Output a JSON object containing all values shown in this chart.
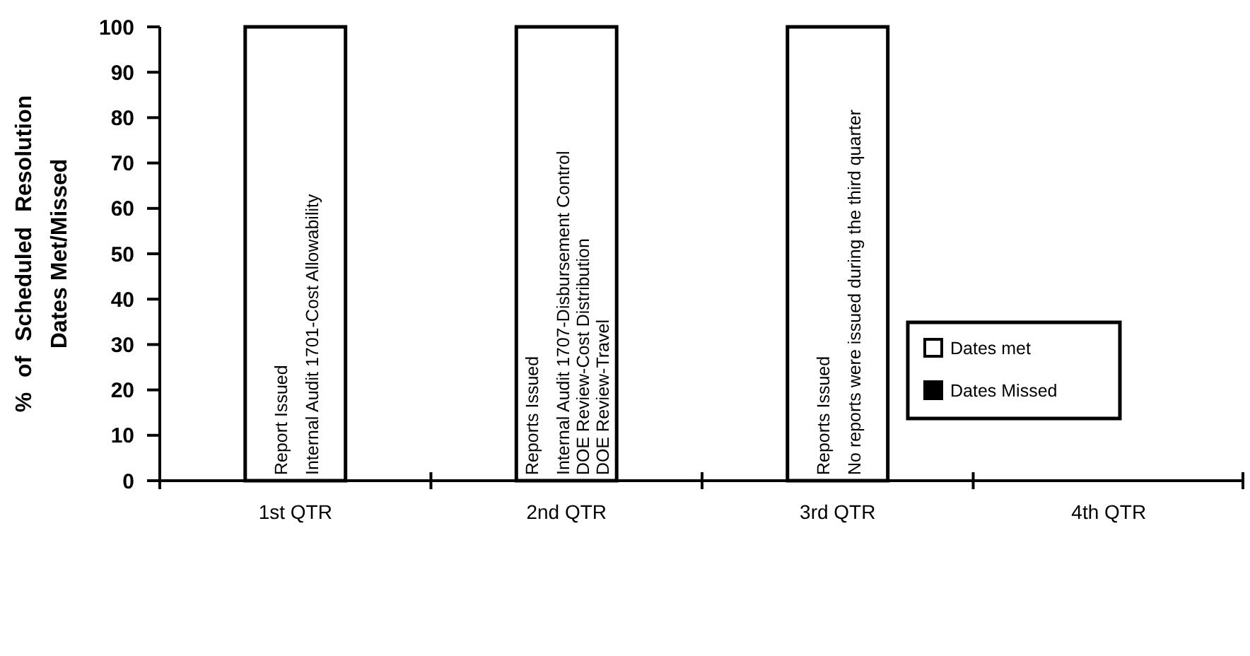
{
  "chart_data": {
    "type": "bar",
    "stacked": true,
    "ylabel": "% of Scheduled Resolution Dates Met/Missed",
    "categories": [
      "1st QTR",
      "2nd QTR",
      "3rd QTR",
      "4th QTR"
    ],
    "series": [
      {
        "name": "Dates met",
        "color": "#ffffff",
        "values": [
          100,
          100,
          100,
          null
        ]
      },
      {
        "name": "Dates Missed",
        "color": "#000000",
        "values": [
          0,
          0,
          0,
          null
        ]
      }
    ],
    "ylim": [
      0,
      100
    ],
    "yticks": [
      0,
      10,
      20,
      30,
      40,
      50,
      60,
      70,
      80,
      90,
      100
    ],
    "grid": false,
    "legend": "right",
    "annotations": [
      "Report Issued\nInternal Audit 1701-Cost Allowability",
      "Reports Issued\nInternal Audit 1707-Disbursement Control\nDOE Review-Cost Distribution\nDOE Review-Travel",
      "Reports Issued\nNo reports were issued during the third quarter"
    ]
  }
}
